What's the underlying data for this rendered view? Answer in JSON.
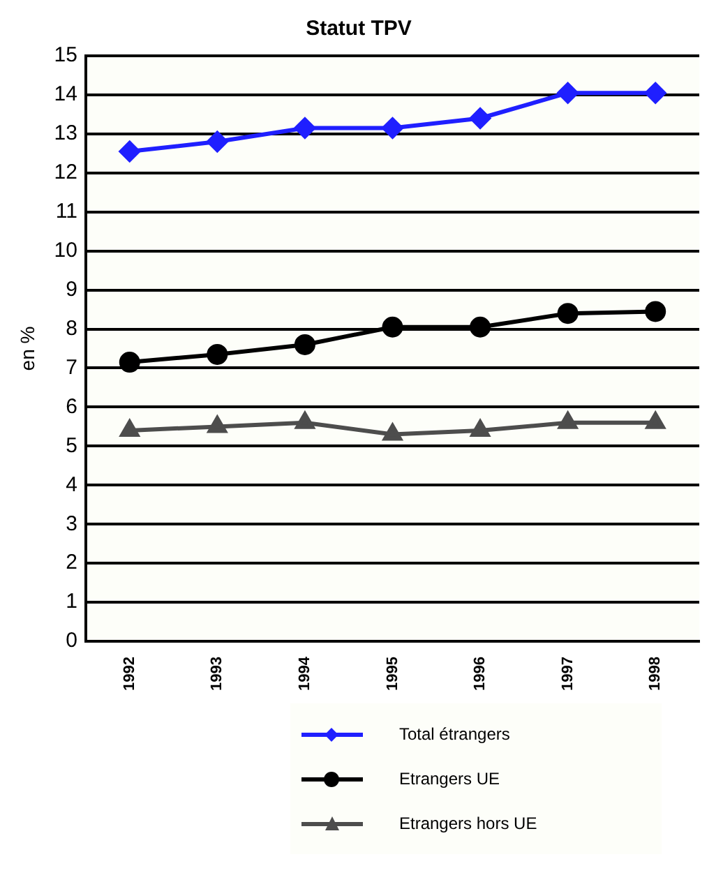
{
  "chart_data": {
    "type": "line",
    "title": "Statut TPV",
    "ylabel": "en %",
    "categories": [
      "1992",
      "1993",
      "1994",
      "1995",
      "1996",
      "1997",
      "1998"
    ],
    "series": [
      {
        "name": "Total étrangers",
        "color": "#1f1fff",
        "marker": "diamond",
        "values": [
          12.55,
          12.8,
          13.15,
          13.15,
          13.4,
          14.05,
          14.05
        ]
      },
      {
        "name": "Etrangers UE",
        "color": "#000000",
        "marker": "circle",
        "values": [
          7.15,
          7.35,
          7.6,
          8.05,
          8.05,
          8.4,
          8.45
        ]
      },
      {
        "name": "Etrangers hors UE",
        "color": "#4d4d4d",
        "marker": "triangle",
        "values": [
          5.4,
          5.5,
          5.6,
          5.3,
          5.4,
          5.6,
          5.6
        ]
      }
    ],
    "ylim": [
      0,
      15
    ],
    "yticks": [
      0,
      1,
      2,
      3,
      4,
      5,
      6,
      7,
      8,
      9,
      10,
      11,
      12,
      13,
      14,
      15
    ],
    "grid": "y",
    "legend": "bottom",
    "line_style": "solid"
  }
}
